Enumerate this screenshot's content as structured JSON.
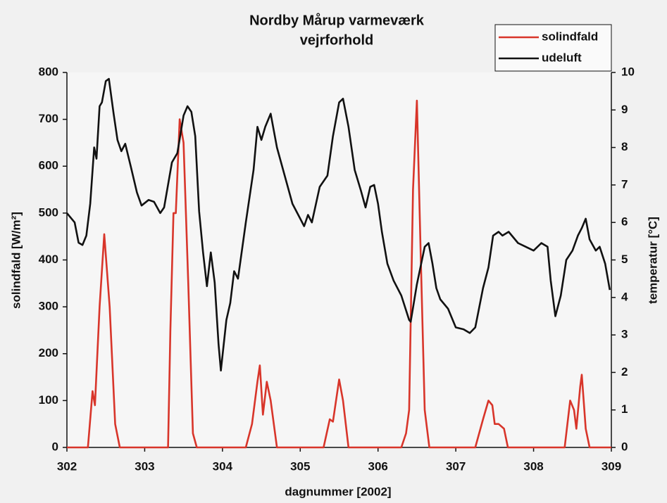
{
  "chart_data": {
    "type": "line",
    "title": "Nordby Mårup varmeværk",
    "subtitle": "vejrforhold",
    "xlabel": "dagnummer [2002]",
    "ylabel": "solindfald [W/m²]",
    "y2label": "temperatur [°C]",
    "xlim": [
      302,
      309
    ],
    "xticks": [
      302,
      303,
      304,
      305,
      306,
      307,
      308,
      309
    ],
    "ylim": [
      0,
      800
    ],
    "yticks": [
      0,
      100,
      200,
      300,
      400,
      500,
      600,
      700,
      800
    ],
    "y2lim": [
      0,
      10
    ],
    "y2ticks": [
      0,
      1,
      2,
      3,
      4,
      5,
      6,
      7,
      8,
      9,
      10
    ],
    "grid": false,
    "legend": "upper right",
    "series": [
      {
        "name": "solindfald",
        "color": "#d8352a",
        "axis": "y",
        "x": [
          302,
          302.2,
          302.27,
          302.33,
          302.36,
          302.42,
          302.48,
          302.55,
          302.62,
          302.68,
          303.3,
          303.33,
          303.37,
          303.4,
          303.45,
          303.5,
          303.56,
          303.62,
          303.67,
          304.3,
          304.38,
          304.45,
          304.48,
          304.52,
          304.57,
          304.62,
          304.7,
          305.3,
          305.38,
          305.42,
          305.5,
          305.55,
          305.62,
          306.3,
          306.36,
          306.4,
          306.45,
          306.5,
          306.55,
          306.6,
          306.66,
          307.25,
          307.35,
          307.42,
          307.47,
          307.5,
          307.55,
          307.62,
          307.67,
          308.4,
          308.47,
          308.52,
          308.55,
          308.6,
          308.62,
          308.67,
          308.72,
          309
        ],
        "values": [
          0,
          0,
          0,
          120,
          90,
          300,
          455,
          300,
          50,
          0,
          0,
          250,
          500,
          500,
          700,
          650,
          350,
          30,
          0,
          0,
          50,
          140,
          175,
          70,
          140,
          100,
          0,
          0,
          60,
          55,
          145,
          100,
          0,
          0,
          30,
          80,
          550,
          740,
          400,
          80,
          0,
          0,
          60,
          100,
          90,
          50,
          50,
          40,
          0,
          0,
          100,
          80,
          40,
          130,
          155,
          40,
          0,
          0
        ]
      },
      {
        "name": "udeluft",
        "color": "#111111",
        "axis": "y2",
        "x": [
          302,
          302.1,
          302.15,
          302.2,
          302.25,
          302.3,
          302.35,
          302.38,
          302.42,
          302.45,
          302.5,
          302.54,
          302.6,
          302.65,
          302.7,
          302.75,
          302.82,
          302.9,
          302.96,
          303.05,
          303.12,
          303.2,
          303.25,
          303.35,
          303.42,
          303.5,
          303.55,
          303.6,
          303.65,
          303.7,
          303.75,
          303.8,
          303.85,
          303.9,
          303.95,
          303.98,
          304.05,
          304.1,
          304.15,
          304.2,
          304.3,
          304.4,
          304.45,
          304.5,
          304.55,
          304.62,
          304.7,
          304.8,
          304.9,
          305,
          305.05,
          305.1,
          305.15,
          305.25,
          305.35,
          305.42,
          305.5,
          305.55,
          305.62,
          305.7,
          305.78,
          305.84,
          305.9,
          305.95,
          306,
          306.05,
          306.12,
          306.2,
          306.3,
          306.4,
          306.42,
          306.5,
          306.6,
          306.65,
          306.7,
          306.75,
          306.8,
          306.9,
          307,
          307.1,
          307.18,
          307.25,
          307.35,
          307.42,
          307.48,
          307.55,
          307.6,
          307.68,
          307.8,
          307.9,
          308,
          308.1,
          308.18,
          308.22,
          308.28,
          308.35,
          308.42,
          308.5,
          308.57,
          308.62,
          308.67,
          308.72,
          308.8,
          308.85,
          308.92,
          308.98
        ],
        "values": [
          6.25,
          6.0,
          5.46,
          5.4,
          5.65,
          6.5,
          8.0,
          7.7,
          9.1,
          9.2,
          9.77,
          9.83,
          8.9,
          8.2,
          7.9,
          8.1,
          7.5,
          6.8,
          6.45,
          6.6,
          6.55,
          6.25,
          6.4,
          7.6,
          7.85,
          8.85,
          9.1,
          8.95,
          8.3,
          6.3,
          5.2,
          4.3,
          5.2,
          4.4,
          2.75,
          2.05,
          3.4,
          3.85,
          4.7,
          4.5,
          6.0,
          7.4,
          8.55,
          8.2,
          8.55,
          8.9,
          8.0,
          7.25,
          6.5,
          6.1,
          5.9,
          6.2,
          6.0,
          6.95,
          7.25,
          8.3,
          9.2,
          9.3,
          8.55,
          7.4,
          6.85,
          6.4,
          6.95,
          7.0,
          6.5,
          5.75,
          4.9,
          4.45,
          4.05,
          3.4,
          3.35,
          4.35,
          5.35,
          5.45,
          4.9,
          4.25,
          3.95,
          3.7,
          3.2,
          3.15,
          3.05,
          3.2,
          4.25,
          4.8,
          5.65,
          5.75,
          5.65,
          5.75,
          5.45,
          5.35,
          5.25,
          5.45,
          5.35,
          4.45,
          3.5,
          4.05,
          5.0,
          5.25,
          5.65,
          5.85,
          6.1,
          5.55,
          5.25,
          5.35,
          4.9,
          4.2
        ]
      }
    ]
  }
}
